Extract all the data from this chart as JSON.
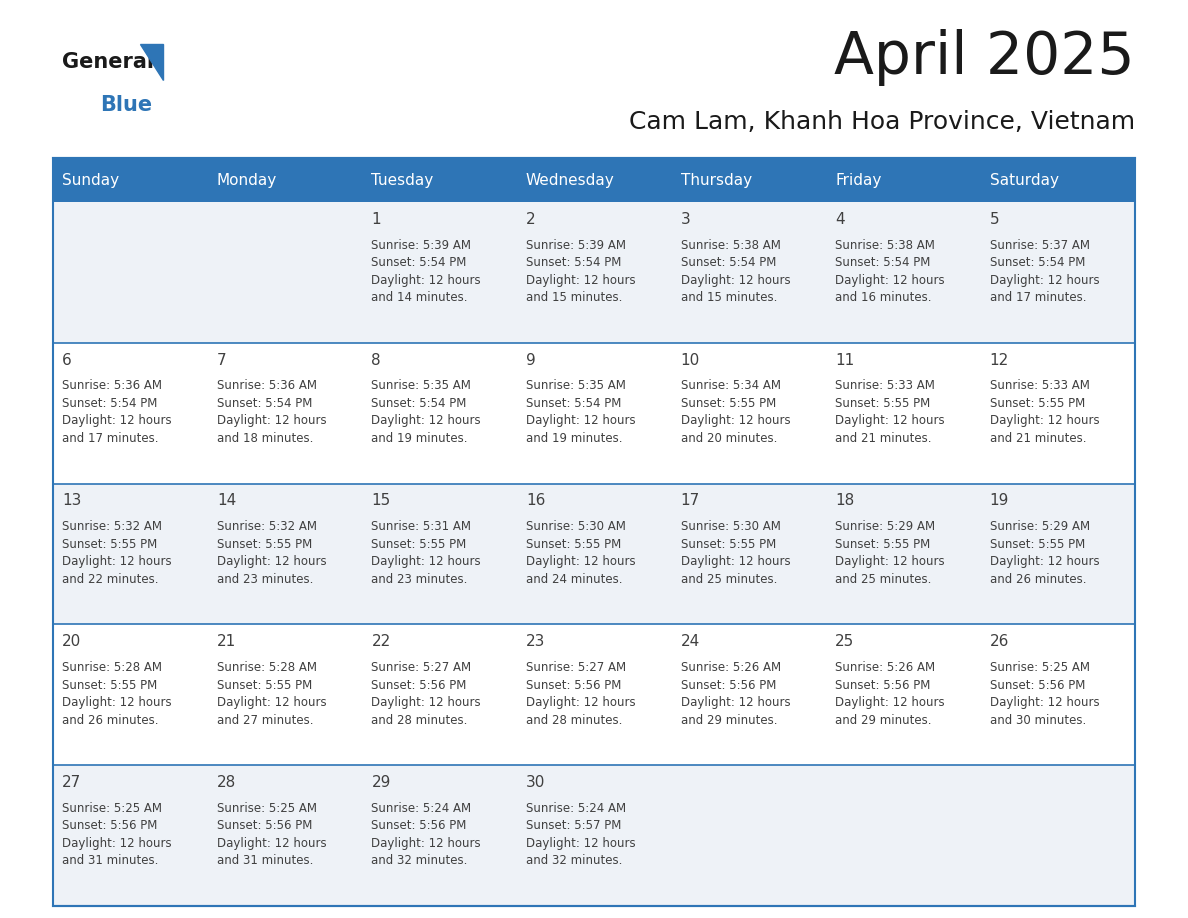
{
  "title": "April 2025",
  "subtitle": "Cam Lam, Khanh Hoa Province, Vietnam",
  "header_bg": "#2e75b6",
  "header_text_color": "#ffffff",
  "cell_bg_even": "#ffffff",
  "cell_bg_odd": "#f0f4f8",
  "border_color": "#2e75b6",
  "text_color": "#404040",
  "days_of_week": [
    "Sunday",
    "Monday",
    "Tuesday",
    "Wednesday",
    "Thursday",
    "Friday",
    "Saturday"
  ],
  "calendar": [
    [
      {
        "day": "",
        "info": ""
      },
      {
        "day": "",
        "info": ""
      },
      {
        "day": "1",
        "info": "Sunrise: 5:39 AM\nSunset: 5:54 PM\nDaylight: 12 hours\nand 14 minutes."
      },
      {
        "day": "2",
        "info": "Sunrise: 5:39 AM\nSunset: 5:54 PM\nDaylight: 12 hours\nand 15 minutes."
      },
      {
        "day": "3",
        "info": "Sunrise: 5:38 AM\nSunset: 5:54 PM\nDaylight: 12 hours\nand 15 minutes."
      },
      {
        "day": "4",
        "info": "Sunrise: 5:38 AM\nSunset: 5:54 PM\nDaylight: 12 hours\nand 16 minutes."
      },
      {
        "day": "5",
        "info": "Sunrise: 5:37 AM\nSunset: 5:54 PM\nDaylight: 12 hours\nand 17 minutes."
      }
    ],
    [
      {
        "day": "6",
        "info": "Sunrise: 5:36 AM\nSunset: 5:54 PM\nDaylight: 12 hours\nand 17 minutes."
      },
      {
        "day": "7",
        "info": "Sunrise: 5:36 AM\nSunset: 5:54 PM\nDaylight: 12 hours\nand 18 minutes."
      },
      {
        "day": "8",
        "info": "Sunrise: 5:35 AM\nSunset: 5:54 PM\nDaylight: 12 hours\nand 19 minutes."
      },
      {
        "day": "9",
        "info": "Sunrise: 5:35 AM\nSunset: 5:54 PM\nDaylight: 12 hours\nand 19 minutes."
      },
      {
        "day": "10",
        "info": "Sunrise: 5:34 AM\nSunset: 5:55 PM\nDaylight: 12 hours\nand 20 minutes."
      },
      {
        "day": "11",
        "info": "Sunrise: 5:33 AM\nSunset: 5:55 PM\nDaylight: 12 hours\nand 21 minutes."
      },
      {
        "day": "12",
        "info": "Sunrise: 5:33 AM\nSunset: 5:55 PM\nDaylight: 12 hours\nand 21 minutes."
      }
    ],
    [
      {
        "day": "13",
        "info": "Sunrise: 5:32 AM\nSunset: 5:55 PM\nDaylight: 12 hours\nand 22 minutes."
      },
      {
        "day": "14",
        "info": "Sunrise: 5:32 AM\nSunset: 5:55 PM\nDaylight: 12 hours\nand 23 minutes."
      },
      {
        "day": "15",
        "info": "Sunrise: 5:31 AM\nSunset: 5:55 PM\nDaylight: 12 hours\nand 23 minutes."
      },
      {
        "day": "16",
        "info": "Sunrise: 5:30 AM\nSunset: 5:55 PM\nDaylight: 12 hours\nand 24 minutes."
      },
      {
        "day": "17",
        "info": "Sunrise: 5:30 AM\nSunset: 5:55 PM\nDaylight: 12 hours\nand 25 minutes."
      },
      {
        "day": "18",
        "info": "Sunrise: 5:29 AM\nSunset: 5:55 PM\nDaylight: 12 hours\nand 25 minutes."
      },
      {
        "day": "19",
        "info": "Sunrise: 5:29 AM\nSunset: 5:55 PM\nDaylight: 12 hours\nand 26 minutes."
      }
    ],
    [
      {
        "day": "20",
        "info": "Sunrise: 5:28 AM\nSunset: 5:55 PM\nDaylight: 12 hours\nand 26 minutes."
      },
      {
        "day": "21",
        "info": "Sunrise: 5:28 AM\nSunset: 5:55 PM\nDaylight: 12 hours\nand 27 minutes."
      },
      {
        "day": "22",
        "info": "Sunrise: 5:27 AM\nSunset: 5:56 PM\nDaylight: 12 hours\nand 28 minutes."
      },
      {
        "day": "23",
        "info": "Sunrise: 5:27 AM\nSunset: 5:56 PM\nDaylight: 12 hours\nand 28 minutes."
      },
      {
        "day": "24",
        "info": "Sunrise: 5:26 AM\nSunset: 5:56 PM\nDaylight: 12 hours\nand 29 minutes."
      },
      {
        "day": "25",
        "info": "Sunrise: 5:26 AM\nSunset: 5:56 PM\nDaylight: 12 hours\nand 29 minutes."
      },
      {
        "day": "26",
        "info": "Sunrise: 5:25 AM\nSunset: 5:56 PM\nDaylight: 12 hours\nand 30 minutes."
      }
    ],
    [
      {
        "day": "27",
        "info": "Sunrise: 5:25 AM\nSunset: 5:56 PM\nDaylight: 12 hours\nand 31 minutes."
      },
      {
        "day": "28",
        "info": "Sunrise: 5:25 AM\nSunset: 5:56 PM\nDaylight: 12 hours\nand 31 minutes."
      },
      {
        "day": "29",
        "info": "Sunrise: 5:24 AM\nSunset: 5:56 PM\nDaylight: 12 hours\nand 32 minutes."
      },
      {
        "day": "30",
        "info": "Sunrise: 5:24 AM\nSunset: 5:57 PM\nDaylight: 12 hours\nand 32 minutes."
      },
      {
        "day": "",
        "info": ""
      },
      {
        "day": "",
        "info": ""
      },
      {
        "day": "",
        "info": ""
      }
    ]
  ],
  "logo_general_color": "#1a1a1a",
  "logo_blue_color": "#2e75b6",
  "logo_triangle_color": "#2e75b6",
  "title_fontsize": 42,
  "subtitle_fontsize": 18,
  "header_fontsize": 11,
  "day_num_fontsize": 11,
  "cell_text_fontsize": 8.5
}
